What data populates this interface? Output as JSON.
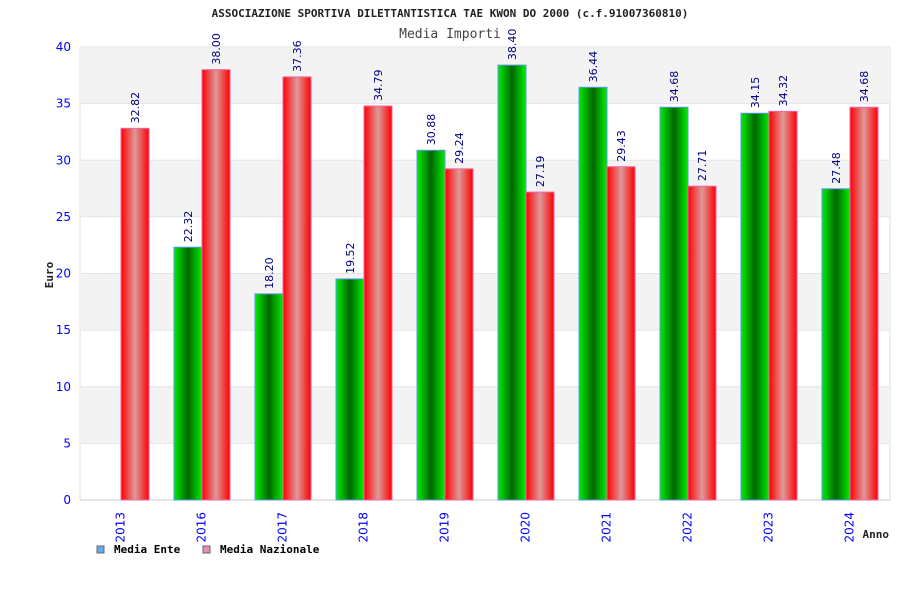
{
  "chart_data": {
    "type": "bar",
    "title": "ASSOCIAZIONE SPORTIVA DILETTANTISTICA TAE KWON DO 2000 (c.f.91007360810)",
    "subtitle": "Media Importi",
    "xlabel": "Anno",
    "ylabel": "Euro",
    "ylim": [
      0,
      40
    ],
    "yticks": [
      0,
      5,
      10,
      15,
      20,
      25,
      30,
      35,
      40
    ],
    "categories": [
      "2013",
      "2016",
      "2017",
      "2018",
      "2019",
      "2020",
      "2021",
      "2022",
      "2023",
      "2024"
    ],
    "series": [
      {
        "name": "Media Ente",
        "color": "#00cc00",
        "legend_color": "#66aaee",
        "values": [
          null,
          22.32,
          18.2,
          19.52,
          30.88,
          38.4,
          36.44,
          34.68,
          34.15,
          27.48
        ],
        "labels": [
          "",
          "22.32",
          "18.20",
          "19.52",
          "30.88",
          "38.40",
          "36.44",
          "34.68",
          "34.15",
          "27.48"
        ]
      },
      {
        "name": "Media Nazionale",
        "color": "#ff0000",
        "legend_color": "#ee88bb",
        "values": [
          32.82,
          38.0,
          37.36,
          34.79,
          29.24,
          27.19,
          29.43,
          27.71,
          34.32,
          34.68
        ],
        "labels": [
          "32.82",
          "38.00",
          "37.36",
          "34.79",
          "29.24",
          "27.19",
          "29.43",
          "27.71",
          "34.32",
          "34.68"
        ]
      }
    ],
    "grid": true,
    "legend_position": "bottom-left"
  }
}
